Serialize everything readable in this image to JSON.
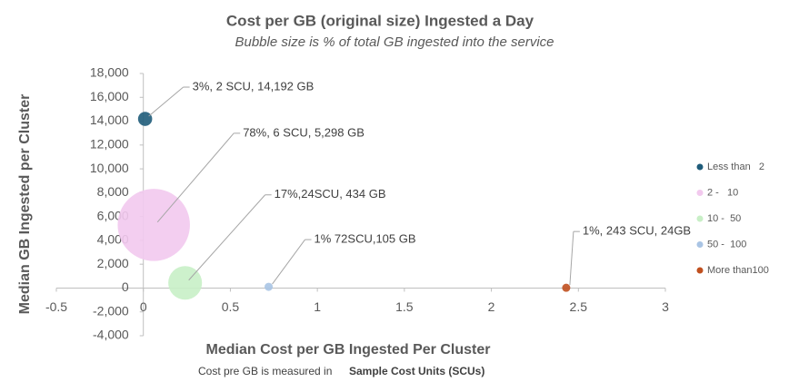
{
  "chart_data": {
    "type": "bubble",
    "title": "Cost per GB (original size) Ingested a Day",
    "subtitle": "Bubble size is % of total GB ingested into the service",
    "x_label": "Median Cost per GB Ingested Per Cluster",
    "y_label": "Median GB Ingested per Cluster",
    "footnote": [
      "Cost pre GB is measured in",
      "Sample Cost Units (SCUs)"
    ],
    "xlim": [
      -0.5,
      3
    ],
    "xticks": [
      -0.5,
      0,
      0.5,
      1,
      1.5,
      2,
      2.5,
      3
    ],
    "ylim": [
      -4000,
      18000
    ],
    "yticks": [
      {
        "value": -4000,
        "label": "-4,000"
      },
      {
        "value": -2000,
        "label": "-2,000"
      },
      0,
      {
        "value": 2000,
        "label": "2,000"
      },
      {
        "value": 4000,
        "label": "4,000"
      },
      {
        "value": 6000,
        "label": "6,000"
      },
      {
        "value": 8000,
        "label": "8,000"
      },
      {
        "value": 10000,
        "label": "10,000"
      },
      {
        "value": 12000,
        "label": "12,000"
      },
      {
        "value": 14000,
        "label": "14,000"
      },
      {
        "value": 16000,
        "label": "16,000"
      },
      {
        "value": 18000,
        "label": "18,000"
      }
    ],
    "grid": false,
    "legend": "right",
    "series": [
      {
        "name": "Less than   2",
        "color": "#1f5c7a",
        "x": [
          0.01
        ],
        "y": [
          14192
        ],
        "size": [
          3
        ],
        "label": "3%, 2 SCU, 14,192 GB"
      },
      {
        "name": "2 -   10",
        "color": "#f2c9ee",
        "x": [
          0.06
        ],
        "y": [
          5298
        ],
        "size": [
          78
        ],
        "label": "78%, 6 SCU, 5,298 GB"
      },
      {
        "name": "10 -  50",
        "color": "#c8efc6",
        "x": [
          0.24
        ],
        "y": [
          434
        ],
        "size": [
          17
        ],
        "label": "17%,24SCU, 434 GB"
      },
      {
        "name": "50 -  100",
        "color": "#a9c4e4",
        "x": [
          0.72
        ],
        "y": [
          105
        ],
        "size": [
          1
        ],
        "label": "1% 72SCU,105 GB"
      },
      {
        "name": "More than100",
        "color": "#c0501f",
        "x": [
          2.43
        ],
        "y": [
          24
        ],
        "size": [
          1
        ],
        "label": "1%, 243 SCU, 24GB"
      }
    ]
  }
}
